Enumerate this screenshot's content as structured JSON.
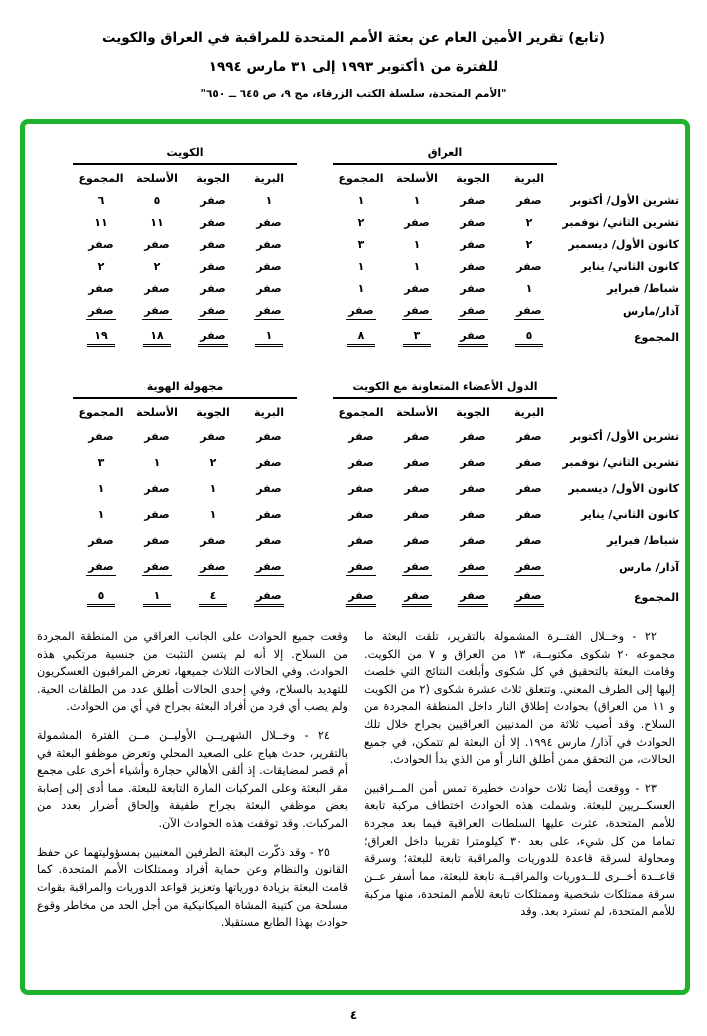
{
  "page": {
    "number": "٤"
  },
  "accent": {
    "border_color": "#1db32e"
  },
  "header": {
    "title": "(تابع) تقرير الأمين العام عن بعثة الأمم المتحدة للمراقبة في العراق والكويت",
    "period": "للفترة من ١أكتوبر ١٩٩٣ إلى ٣١ مارس ١٩٩٤",
    "source": "\"الأمم المتحدة، سلسلة الكتب الزرقاء، مج ٩، ص ٦٤٥ ــ ٦٥٠\""
  },
  "table1": {
    "group_right": "العراق",
    "group_left": "الكويت",
    "columns": [
      "البرية",
      "الجوية",
      "الأسلحة",
      "المجموع"
    ],
    "rows": [
      {
        "label": "تشرين الأول/ أكتوبر",
        "cells": [
          "صفر",
          "صفر",
          "١",
          "١",
          "١",
          "صفر",
          "٥",
          "٦"
        ]
      },
      {
        "label": "تشرين الثاني/ نوفمبر",
        "cells": [
          "٢",
          "صفر",
          "صفر",
          "٢",
          "صفر",
          "صفر",
          "١١",
          "١١"
        ]
      },
      {
        "label": "كانون الأول/ ديسمبر",
        "cells": [
          "٢",
          "صفر",
          "١",
          "٣",
          "صفر",
          "صفر",
          "صفر",
          "صفر"
        ]
      },
      {
        "label": "كانون الثاني/ يناير",
        "cells": [
          "صفر",
          "صفر",
          "١",
          "١",
          "صفر",
          "صفر",
          "٢",
          "٢"
        ]
      },
      {
        "label": "شباط/ فبراير",
        "cells": [
          "١",
          "صفر",
          "صفر",
          "١",
          "صفر",
          "صفر",
          "صفر",
          "صفر"
        ]
      },
      {
        "label": "آذار/مارس",
        "cells": [
          "صفر",
          "صفر",
          "صفر",
          "صفر",
          "صفر",
          "صفر",
          "صفر",
          "صفر"
        ]
      },
      {
        "label": "المجموع",
        "cells": [
          "٥",
          "صفر",
          "٣",
          "٨",
          "١",
          "صفر",
          "١٨",
          "١٩"
        ]
      }
    ]
  },
  "table2": {
    "group_right": "الدول الأعضاء المتعاونة مع الكويت",
    "group_left": "مجهولة الهوية",
    "columns": [
      "البرية",
      "الجوية",
      "الأسلحة",
      "المجموع"
    ],
    "rows": [
      {
        "label": "تشرين الأول/ أكتوبر",
        "cells": [
          "صفر",
          "صفر",
          "صفر",
          "صفر",
          "صفر",
          "صفر",
          "صفر",
          "صفر"
        ]
      },
      {
        "label": "تشرين الثاني/ نوفمبر",
        "cells": [
          "صفر",
          "صفر",
          "صفر",
          "صفر",
          "صفر",
          "٢",
          "١",
          "٣"
        ]
      },
      {
        "label": "كانون الأول/ ديسمبر",
        "cells": [
          "صفر",
          "صفر",
          "صفر",
          "صفر",
          "صفر",
          "١",
          "صفر",
          "١"
        ]
      },
      {
        "label": "كانون الثاني/ يناير",
        "cells": [
          "صفر",
          "صفر",
          "صفر",
          "صفر",
          "صفر",
          "١",
          "صفر",
          "١"
        ]
      },
      {
        "label": "شباط/ فبراير",
        "cells": [
          "صفر",
          "صفر",
          "صفر",
          "صفر",
          "صفر",
          "صفر",
          "صفر",
          "صفر"
        ]
      },
      {
        "label": "آذار/ مارس",
        "cells": [
          "صفر",
          "صفر",
          "صفر",
          "صفر",
          "صفر",
          "صفر",
          "صفر",
          "صفر"
        ]
      },
      {
        "label": "المجموع",
        "cells": [
          "صفر",
          "صفر",
          "صفر",
          "صفر",
          "صفر",
          "٤",
          "١",
          "٥"
        ]
      }
    ]
  },
  "body": {
    "right_column": [
      "٢٢ - وخــلال الفتــرة المشمولة بالتقرير، تلقت البعثة ما مجموعه ٢٠ شكوى مكتوبــة، ١٣ من العراق و ٧ من الكويت. وقامت البعثة بالتحقيق في كل شكوى وأبلغت النتائج التي خلصت إليها إلى الطرف المعني. وتتعلق ثلاث عشرة شكوى (٢ من الكويت و ١١ من العراق) بحوادث إطلاق النار داخل المنطقة المجردة من السلاح. وقد أصيب ثلاثة من المدنيين العراقيين بجراح خلال تلك الحوادث في آذار/ مارس ١٩٩٤. إلا أن البعثة لم تتمكن، في جميع الحالات، من التحقق ممن أطلق النار أو من الذي بدأ الحوادث.",
      "٢٣ - ووقعت أيضا ثلاث حوادث خطيرة تمس أمن المــراقبين العسكــريين للبعثة. وشملت هذه الحوادث اختطاف مركبة تابعة للأمم المتحدة، عثرت عليها السلطات العراقية فيما بعد مجردة تماما من كل شيء، على بعد ٣٠ كيلومترا تقريبا داخل العراق؛ ومحاولة لسرقة قاعدة للدوريات والمراقبة تابعة للبعثة؛ وسرقة قاعــدة أخــرى للــدوريات والمراقبــة تابعة للبعثة، مما أسفر عــن سرقة ممتلكات شخصية وممتلكات تابعة للأمم المتحدة، منها مركبة للأمم المتحدة، لم تسترد بعد. وقد"
    ],
    "left_column": [
      "وقعت جميع الحوادث على الجانب العراقي من المنطقة المجردة من السلاح. إلا أنه لم يتسن التثبت من جنسية مرتكبي هذه الحوادث. وفي الحالات الثلاث جميعها، تعرض المراقبون العسكريون للتهديد بالسلاح، وفي إحدى الحالات أطلق عدد من الطلقات الحية. ولم يصب أي فرد من أفراد البعثة بجراح في أي من الحوادث.",
      "٢٤ - وخــلال الشهريــن الأوليــن مــن الفترة المشمولة بالتقرير، حدث هياج على الصعيد المحلي وتعرض موظفو البعثة في أم قصر لمضايقات. إذ ألقى الأهالي حجارة وأشياء أخرى على مجمع مقر البعثة وعلى المركبات المارة التابعة للبعثة. مما أدى إلى إصابة بعض موظفي البعثة بجراح طفيفة وإلحاق أضرار بعدد من المركبات. وقد توقفت هذه الحوادث الآن.",
      "٢٥ - وقد ذكّرت البعثة الطرفين المعنيين بمسؤوليتهما عن حفظ القانون والنظام وعن حماية أفراد وممتلكات الأمم المتحدة. كما قامت البعثة بزيادة دورياتها وتعزيز قواعد الدوريات والمراقبة بقوات مسلحة من كتيبة المشاة الميكانيكية من أجل الحد من مخاطر وقوع حوادث بهذا الطابع مستقبلا."
    ]
  }
}
